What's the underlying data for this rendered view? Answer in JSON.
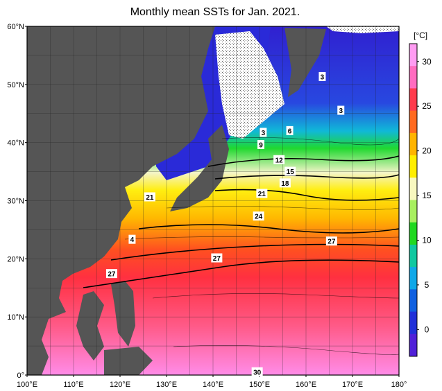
{
  "title": "Monthly mean SSTs for Jan. 2021.",
  "units": "[°C]",
  "lat_labels": [
    "60°N",
    "50°N",
    "40°N",
    "30°N",
    "20°N",
    "10°N",
    "0°"
  ],
  "lon_labels": [
    "100°E",
    "110°E",
    "120°E",
    "130°E",
    "140°E",
    "150°E",
    "160°E",
    "170°E",
    "180°"
  ],
  "colorbar": {
    "ticks": [
      "30",
      "25",
      "20",
      "15",
      "10",
      "5",
      "0"
    ],
    "colors": [
      "#ff9cf2",
      "#ff6cc0",
      "#ff3b4d",
      "#ff6a20",
      "#ffb400",
      "#ffee00",
      "#f8f8c0",
      "#a8f060",
      "#20d820",
      "#10c8a0",
      "#10a8e8",
      "#1060e0",
      "#2030d8",
      "#5020d8"
    ]
  },
  "contour_labels": [
    {
      "text": "3",
      "lon": 163.5,
      "lat": 51.3
    },
    {
      "text": "3",
      "lon": 167.5,
      "lat": 45.5
    },
    {
      "text": "3",
      "lon": 150.8,
      "lat": 41.7
    },
    {
      "text": "6",
      "lon": 156.5,
      "lat": 42.0
    },
    {
      "text": "9",
      "lon": 150.3,
      "lat": 39.6
    },
    {
      "text": "12",
      "lon": 154.2,
      "lat": 37.0
    },
    {
      "text": "15",
      "lon": 156.6,
      "lat": 35.0
    },
    {
      "text": "18",
      "lon": 155.5,
      "lat": 33.0
    },
    {
      "text": "21",
      "lon": 126.4,
      "lat": 30.6
    },
    {
      "text": "21",
      "lon": 150.5,
      "lat": 31.2
    },
    {
      "text": "24",
      "lon": 149.8,
      "lat": 27.3
    },
    {
      "text": "27",
      "lon": 165.5,
      "lat": 23.0
    },
    {
      "text": "4",
      "lon": 122.6,
      "lat": 23.3
    },
    {
      "text": "27",
      "lon": 140.8,
      "lat": 20.1
    },
    {
      "text": "27",
      "lon": 118.2,
      "lat": 17.4
    },
    {
      "text": "30",
      "lon": 149.5,
      "lat": 0.5
    }
  ],
  "map_extent": {
    "lon": [
      100,
      180
    ],
    "lat": [
      0,
      60
    ]
  }
}
